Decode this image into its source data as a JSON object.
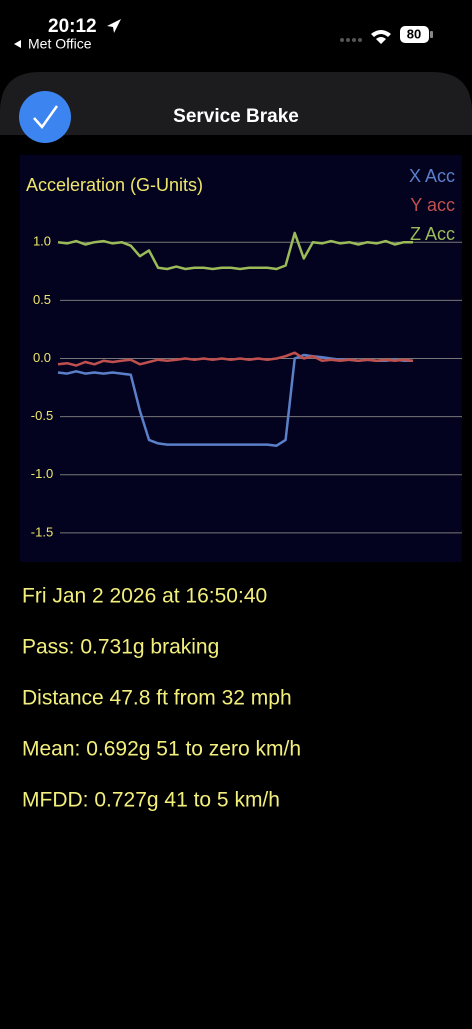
{
  "status_bar": {
    "time": "20:12",
    "back_app": "Met Office",
    "battery": "80"
  },
  "header": {
    "title": "Service Brake"
  },
  "chart_data": {
    "type": "line",
    "title": "Acceleration (G-Units)",
    "ylim": [
      -1.75,
      1.75
    ],
    "yticks": [
      {
        "value": 1,
        "label": "1.0"
      },
      0.5,
      {
        "value": 0,
        "label": "0.0"
      },
      -0.5,
      {
        "value": -1,
        "label": "-1.0"
      },
      -1.5
    ],
    "grid": true,
    "legend": "top-right",
    "series": [
      {
        "name": "X Acc",
        "color": "#5b80c9",
        "values": [
          -0.12,
          -0.13,
          -0.11,
          -0.13,
          -0.12,
          -0.13,
          -0.12,
          -0.13,
          -0.14,
          -0.45,
          -0.7,
          -0.73,
          -0.74,
          -0.74,
          -0.74,
          -0.74,
          -0.74,
          -0.74,
          -0.74,
          -0.74,
          -0.74,
          -0.74,
          -0.74,
          -0.74,
          -0.75,
          -0.7,
          0.0,
          0.03,
          0.02,
          0.01,
          0.0,
          -0.01,
          -0.01,
          -0.02,
          -0.01,
          -0.02,
          -0.02,
          -0.01,
          -0.02,
          -0.02
        ]
      },
      {
        "name": "Y acc",
        "color": "#c0504d",
        "values": [
          -0.05,
          -0.04,
          -0.06,
          -0.03,
          -0.05,
          -0.02,
          -0.03,
          -0.02,
          -0.01,
          -0.05,
          -0.03,
          -0.01,
          -0.02,
          -0.01,
          0.0,
          -0.01,
          0.0,
          -0.01,
          0.0,
          -0.01,
          0.0,
          -0.01,
          0.0,
          -0.01,
          0.0,
          0.02,
          0.05,
          0.0,
          0.02,
          -0.02,
          -0.01,
          -0.02,
          -0.01,
          -0.02,
          -0.01,
          -0.02,
          -0.01,
          -0.02,
          -0.01,
          -0.02
        ]
      },
      {
        "name": "Z Acc",
        "color": "#9bbb59",
        "values": [
          1.0,
          0.99,
          1.01,
          0.98,
          1.0,
          1.01,
          0.99,
          1.0,
          0.97,
          0.88,
          0.93,
          0.78,
          0.77,
          0.79,
          0.77,
          0.78,
          0.78,
          0.77,
          0.78,
          0.78,
          0.77,
          0.78,
          0.78,
          0.78,
          0.77,
          0.8,
          1.08,
          0.86,
          1.0,
          0.99,
          1.01,
          0.99,
          1.0,
          0.98,
          1.0,
          0.99,
          1.01,
          0.98,
          1.0,
          1.0
        ]
      }
    ]
  },
  "details": [
    "Fri Jan 2 2026 at 16:50:40",
    "Pass: 0.731g braking",
    "Distance 47.8 ft from 32 mph",
    "Mean: 0.692g 51 to zero km/h",
    "MFDD: 0.727g 41 to 5 km/h"
  ]
}
